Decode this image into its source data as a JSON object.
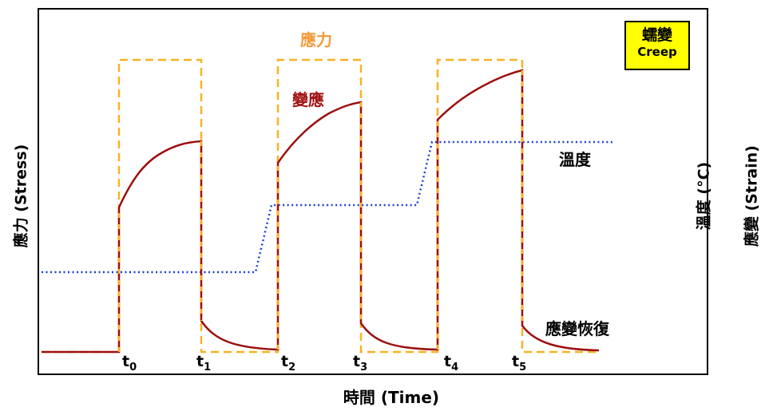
{
  "x_axis_label": "時間 (Time)",
  "y_axis_left_label": "應力 (Stress)",
  "y_axis_right_labels": {
    "temperature": "溫度 (°C)",
    "strain": "應變 (Strain)"
  },
  "badge": {
    "title_zh": "蠕變",
    "title_en": "Creep",
    "background_color": "#ffff00"
  },
  "annotations": {
    "stress": "應力",
    "strain": "變應",
    "temperature": "溫度",
    "strain_recovery": "應變恢復"
  },
  "time_markers": [
    {
      "base": "t",
      "sub": "0"
    },
    {
      "base": "t",
      "sub": "1"
    },
    {
      "base": "t",
      "sub": "2"
    },
    {
      "base": "t",
      "sub": "3"
    },
    {
      "base": "t",
      "sub": "4"
    },
    {
      "base": "t",
      "sub": "5"
    }
  ],
  "series_colors": {
    "stress": "#f5b324",
    "strain": "#9b1010",
    "temperature": "#1a3fd6"
  },
  "line_styles": {
    "stress": "dashed",
    "strain": "solid",
    "temperature": "dotted"
  }
}
